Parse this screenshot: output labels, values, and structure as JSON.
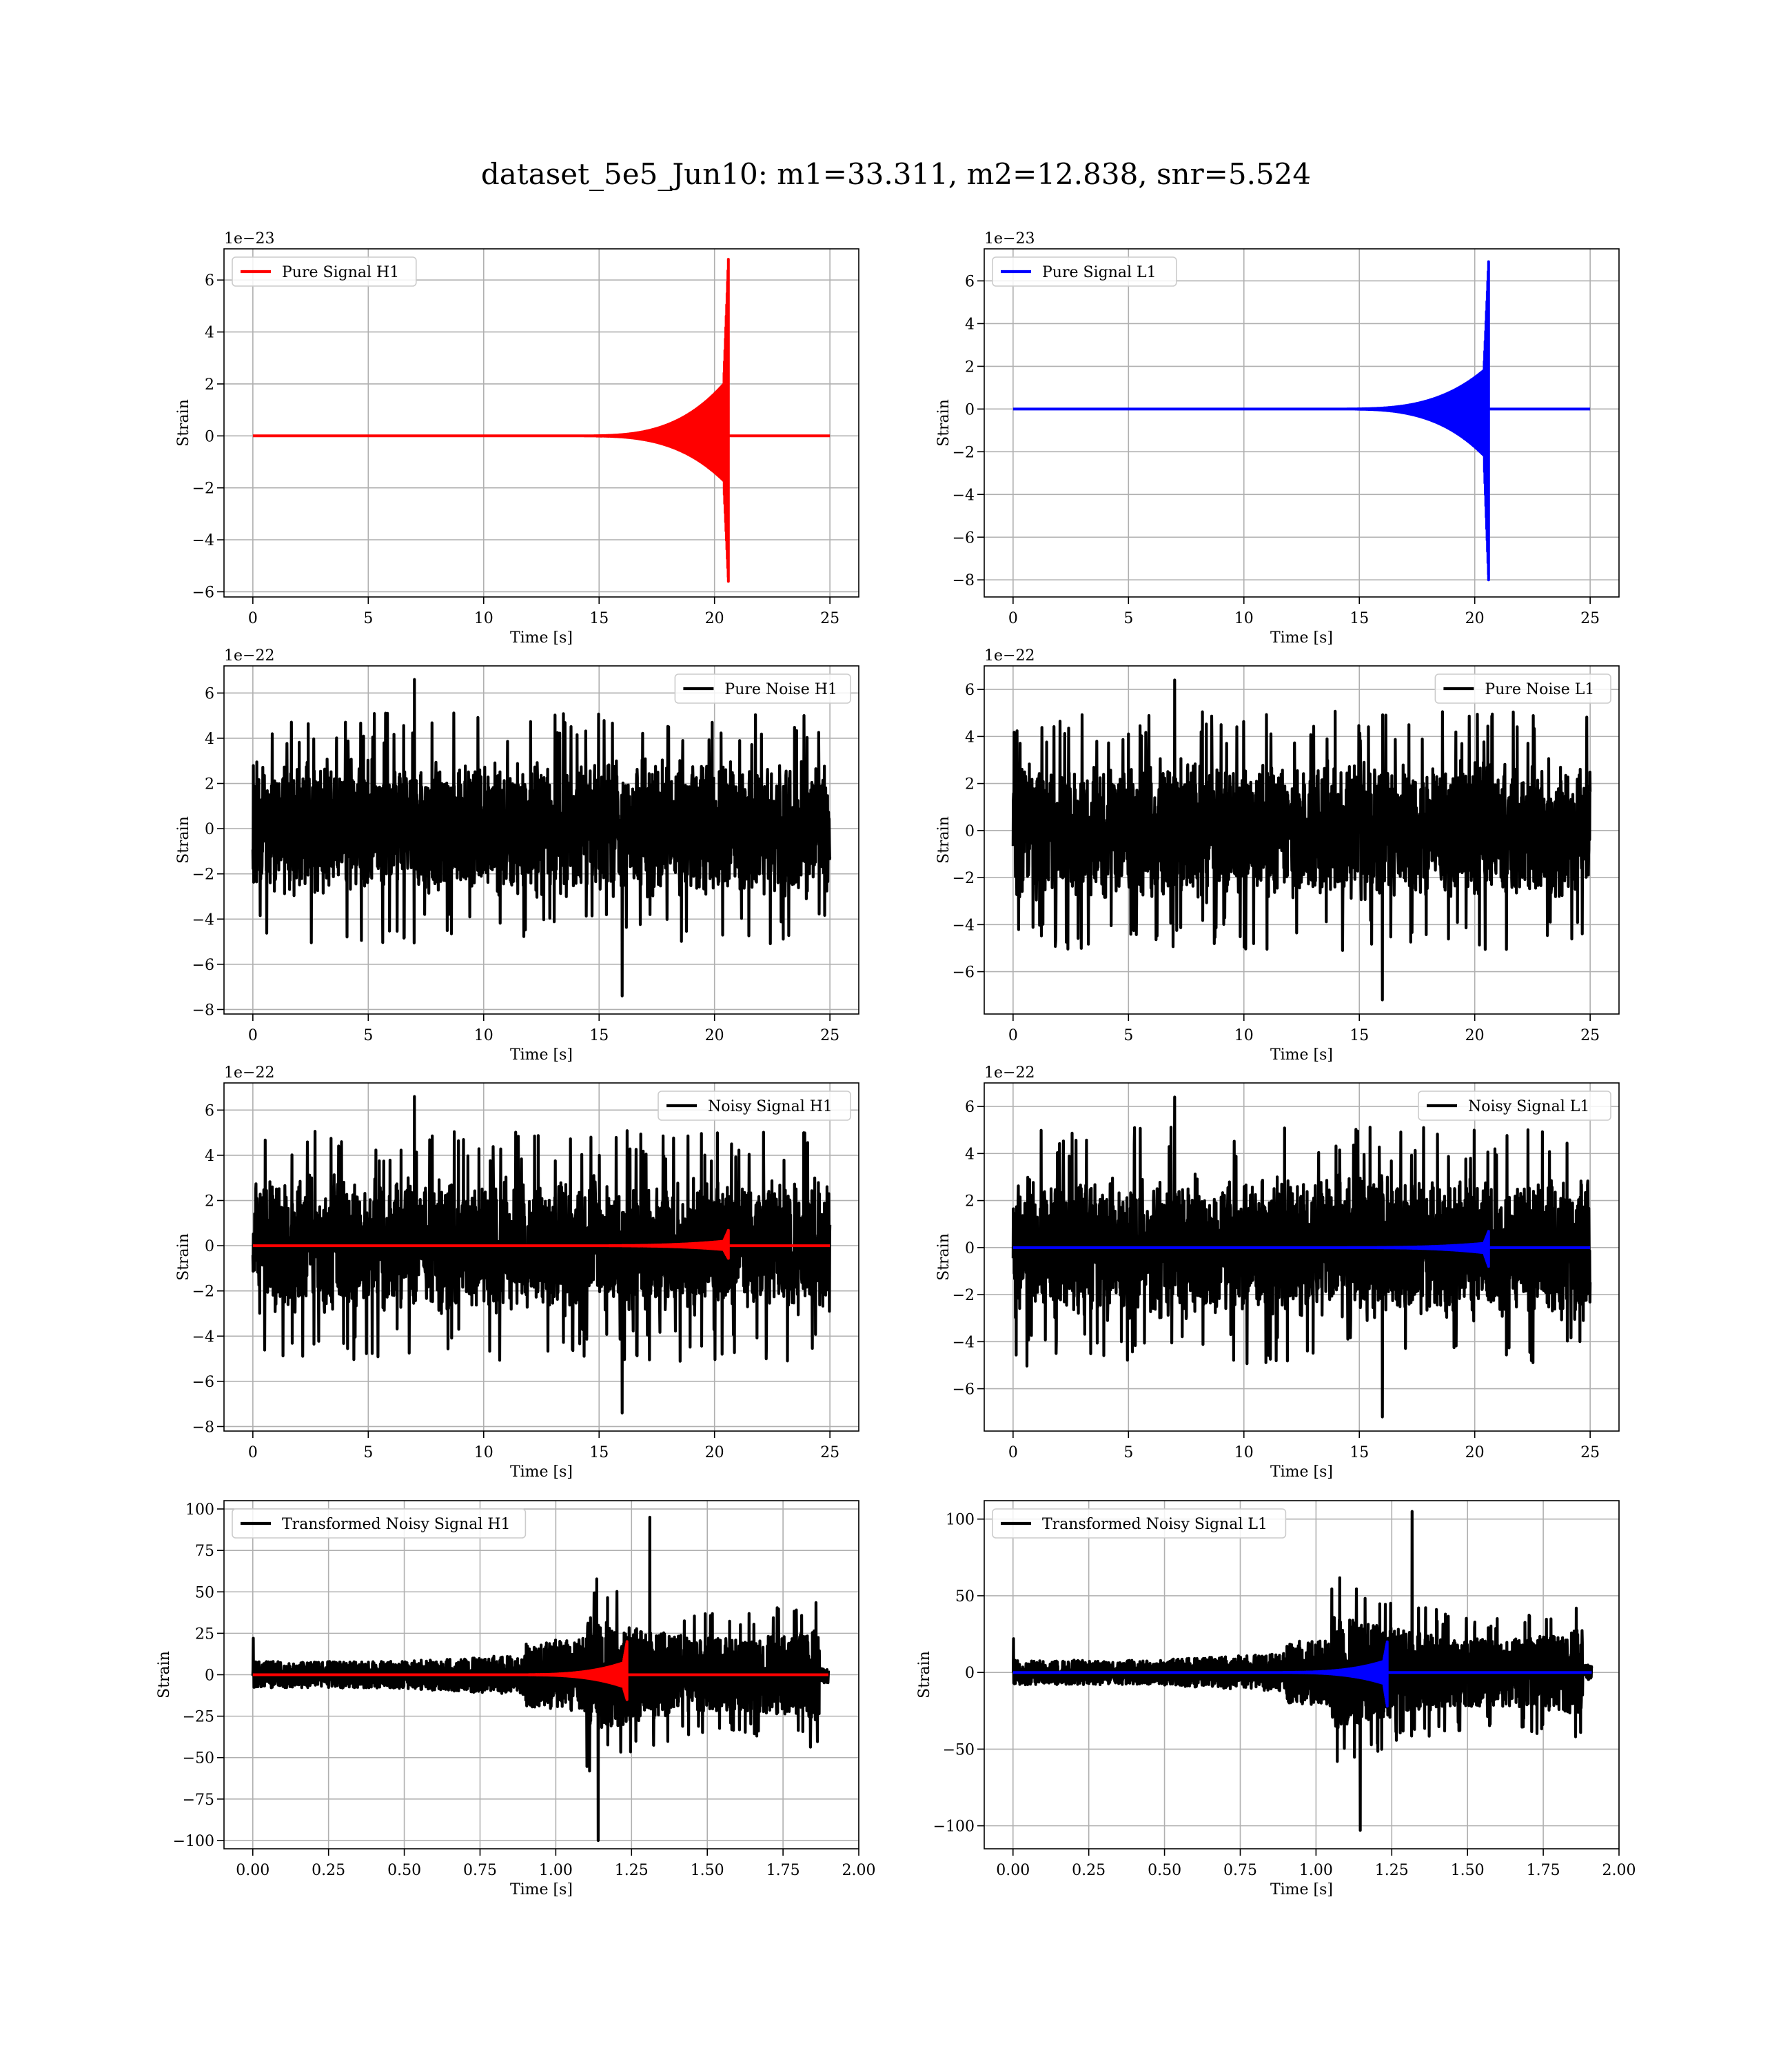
{
  "figure_title": "dataset_5e5_Jun10: m1=33.311, m2=12.838, snr=5.524",
  "chart_data": [
    {
      "type": "line",
      "title": "",
      "xlabel": "Time [s]",
      "ylabel": "Strain",
      "offset_label": "1e−23",
      "xlim": [
        -1.25,
        26.25
      ],
      "ylim": [
        -6.2,
        7.2
      ],
      "xticks": [
        0,
        5,
        10,
        15,
        20,
        25
      ],
      "xtick_labels": [
        "0",
        "5",
        "10",
        "15",
        "20",
        "25"
      ],
      "yticks": [
        -6,
        -4,
        -2,
        0,
        2,
        4,
        6
      ],
      "ytick_labels": [
        "−6",
        "−4",
        "−2",
        "0",
        "2",
        "4",
        "6"
      ],
      "grid": true,
      "legend_position": "upper-left",
      "series": [
        {
          "name": "Pure Signal H1",
          "color": "#ff0000",
          "kind": "chirp",
          "x_start": 0,
          "x_end": 25,
          "x_merger": 20.6,
          "onset": 14.0,
          "pos_peak": 6.8,
          "neg_peak": -5.6,
          "pos_pre": 2.2,
          "neg_pre": -1.9
        }
      ]
    },
    {
      "type": "line",
      "title": "",
      "xlabel": "Time [s]",
      "ylabel": "Strain",
      "offset_label": "1e−23",
      "xlim": [
        -1.25,
        26.25
      ],
      "ylim": [
        -8.8,
        7.5
      ],
      "xticks": [
        0,
        5,
        10,
        15,
        20,
        25
      ],
      "xtick_labels": [
        "0",
        "5",
        "10",
        "15",
        "20",
        "25"
      ],
      "yticks": [
        -8,
        -6,
        -4,
        -2,
        0,
        2,
        4,
        6
      ],
      "ytick_labels": [
        "−8",
        "−6",
        "−4",
        "−2",
        "0",
        "2",
        "4",
        "6"
      ],
      "grid": true,
      "legend_position": "upper-left",
      "series": [
        {
          "name": "Pure Signal L1",
          "color": "#0000ff",
          "kind": "chirp",
          "x_start": 0,
          "x_end": 25,
          "x_merger": 20.6,
          "onset": 14.0,
          "pos_peak": 6.9,
          "neg_peak": -8.0,
          "pos_pre": 2.0,
          "neg_pre": -2.4
        }
      ]
    },
    {
      "type": "line",
      "title": "",
      "xlabel": "Time [s]",
      "ylabel": "Strain",
      "offset_label": "1e−22",
      "xlim": [
        -1.25,
        26.25
      ],
      "ylim": [
        -8.2,
        7.2
      ],
      "xticks": [
        0,
        5,
        10,
        15,
        20,
        25
      ],
      "xtick_labels": [
        "0",
        "5",
        "10",
        "15",
        "20",
        "25"
      ],
      "yticks": [
        -8,
        -6,
        -4,
        -2,
        0,
        2,
        4,
        6
      ],
      "ytick_labels": [
        "−8",
        "−6",
        "−4",
        "−2",
        "0",
        "2",
        "4",
        "6"
      ],
      "grid": true,
      "legend_position": "upper-right",
      "series": [
        {
          "name": "Pure Noise H1",
          "color": "#000000",
          "kind": "noise",
          "x_start": 0,
          "x_end": 25,
          "envelope": 3.2,
          "spike_max": 6.6,
          "spike_min": -7.4
        }
      ]
    },
    {
      "type": "line",
      "title": "",
      "xlabel": "Time [s]",
      "ylabel": "Strain",
      "offset_label": "1e−22",
      "xlim": [
        -1.25,
        26.25
      ],
      "ylim": [
        -7.8,
        7.0
      ],
      "xticks": [
        0,
        5,
        10,
        15,
        20,
        25
      ],
      "xtick_labels": [
        "0",
        "5",
        "10",
        "15",
        "20",
        "25"
      ],
      "yticks": [
        -6,
        -4,
        -2,
        0,
        2,
        4,
        6
      ],
      "ytick_labels": [
        "−6",
        "−4",
        "−2",
        "0",
        "2",
        "4",
        "6"
      ],
      "grid": true,
      "legend_position": "upper-right",
      "series": [
        {
          "name": "Pure Noise L1",
          "color": "#000000",
          "kind": "noise",
          "x_start": 0,
          "x_end": 25,
          "envelope": 3.2,
          "spike_max": 6.4,
          "spike_min": -7.2
        }
      ]
    },
    {
      "type": "line",
      "title": "",
      "xlabel": "Time [s]",
      "ylabel": "Strain",
      "offset_label": "1e−22",
      "xlim": [
        -1.25,
        26.25
      ],
      "ylim": [
        -8.2,
        7.2
      ],
      "xticks": [
        0,
        5,
        10,
        15,
        20,
        25
      ],
      "xtick_labels": [
        "0",
        "5",
        "10",
        "15",
        "20",
        "25"
      ],
      "yticks": [
        -8,
        -6,
        -4,
        -2,
        0,
        2,
        4,
        6
      ],
      "ytick_labels": [
        "−8",
        "−6",
        "−4",
        "−2",
        "0",
        "2",
        "4",
        "6"
      ],
      "grid": true,
      "legend_position": "upper-right",
      "series": [
        {
          "name": "Noisy Signal H1",
          "color": "#000000",
          "kind": "noise",
          "x_start": 0,
          "x_end": 25,
          "envelope": 3.2,
          "spike_max": 6.6,
          "spike_min": -7.4
        },
        {
          "name": "",
          "color": "#ff0000",
          "kind": "chirp",
          "x_start": 0,
          "x_end": 25,
          "x_merger": 20.6,
          "onset": 14.0,
          "pos_peak": 0.68,
          "neg_peak": -0.56,
          "pos_pre": 0.22,
          "neg_pre": -0.19
        }
      ]
    },
    {
      "type": "line",
      "title": "",
      "xlabel": "Time [s]",
      "ylabel": "Strain",
      "offset_label": "1e−22",
      "xlim": [
        -1.25,
        26.25
      ],
      "ylim": [
        -7.8,
        7.0
      ],
      "xticks": [
        0,
        5,
        10,
        15,
        20,
        25
      ],
      "xtick_labels": [
        "0",
        "5",
        "10",
        "15",
        "20",
        "25"
      ],
      "yticks": [
        -6,
        -4,
        -2,
        0,
        2,
        4,
        6
      ],
      "ytick_labels": [
        "−6",
        "−4",
        "−2",
        "0",
        "2",
        "4",
        "6"
      ],
      "grid": true,
      "legend_position": "upper-right",
      "series": [
        {
          "name": "Noisy Signal L1",
          "color": "#000000",
          "kind": "noise",
          "x_start": 0,
          "x_end": 25,
          "envelope": 3.2,
          "spike_max": 6.4,
          "spike_min": -7.2
        },
        {
          "name": "",
          "color": "#0000ff",
          "kind": "chirp",
          "x_start": 0,
          "x_end": 25,
          "x_merger": 20.6,
          "onset": 14.0,
          "pos_peak": 0.69,
          "neg_peak": -0.8,
          "pos_pre": 0.2,
          "neg_pre": -0.24
        }
      ]
    },
    {
      "type": "line",
      "title": "",
      "xlabel": "Time [s]",
      "ylabel": "Strain",
      "offset_label": "",
      "xlim": [
        -0.095,
        2.0
      ],
      "ylim": [
        -105,
        105
      ],
      "xticks": [
        0.0,
        0.25,
        0.5,
        0.75,
        1.0,
        1.25,
        1.5,
        1.75,
        2.0
      ],
      "xtick_labels": [
        "0.00",
        "0.25",
        "0.50",
        "0.75",
        "1.00",
        "1.25",
        "1.50",
        "1.75",
        "2.00"
      ],
      "yticks": [
        -100,
        -75,
        -50,
        -25,
        0,
        25,
        50,
        75,
        100
      ],
      "ytick_labels": [
        "−100",
        "−75",
        "−50",
        "−25",
        "0",
        "25",
        "50",
        "75",
        "100"
      ],
      "grid": true,
      "legend_position": "upper-left",
      "series": [
        {
          "name": "Transformed Noisy Signal H1",
          "color": "#000000",
          "kind": "transformed",
          "x_start": 0,
          "x_end": 1.9,
          "jump_x": 1.1,
          "end_x": 1.87,
          "low_amp": 8,
          "mid_amp": 14,
          "high_amp": 55,
          "spike_max": 95,
          "spike_min": -100
        },
        {
          "name": "",
          "color": "#ff0000",
          "kind": "chirp",
          "x_start": 0,
          "x_end": 1.9,
          "x_merger": 1.235,
          "onset": 0.85,
          "pos_peak": 20,
          "neg_peak": -15,
          "pos_pre": 8,
          "neg_pre": -8
        }
      ]
    },
    {
      "type": "line",
      "title": "",
      "xlabel": "Time [s]",
      "ylabel": "Strain",
      "offset_label": "",
      "xlim": [
        -0.095,
        2.0
      ],
      "ylim": [
        -115,
        112
      ],
      "xticks": [
        0.0,
        0.25,
        0.5,
        0.75,
        1.0,
        1.25,
        1.5,
        1.75,
        2.0
      ],
      "xtick_labels": [
        "0.00",
        "0.25",
        "0.50",
        "0.75",
        "1.00",
        "1.25",
        "1.50",
        "1.75",
        "2.00"
      ],
      "yticks": [
        -100,
        -50,
        0,
        50,
        100
      ],
      "ytick_labels": [
        "−100",
        "−50",
        "0",
        "50",
        "100"
      ],
      "grid": true,
      "legend_position": "upper-left",
      "series": [
        {
          "name": "Transformed Noisy Signal L1",
          "color": "#000000",
          "kind": "transformed",
          "x_start": 0,
          "x_end": 1.91,
          "jump_x": 1.05,
          "end_x": 1.88,
          "low_amp": 8,
          "mid_amp": 14,
          "high_amp": 55,
          "spike_max": 105,
          "spike_min": -103
        },
        {
          "name": "",
          "color": "#0000ff",
          "kind": "chirp",
          "x_start": 0,
          "x_end": 1.91,
          "x_merger": 1.235,
          "onset": 0.85,
          "pos_peak": 20,
          "neg_peak": -22,
          "pos_pre": 8,
          "neg_pre": -8
        }
      ]
    }
  ]
}
